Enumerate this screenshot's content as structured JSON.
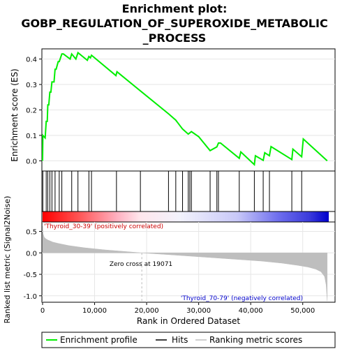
{
  "chart_data": [
    {
      "type": "line",
      "title_lines": [
        "Enrichment plot:",
        "GOBP_REGULATION_OF_SUPEROXIDE_METABOLIC",
        "_PROCESS"
      ],
      "ylabel": "Enrichment score (ES)",
      "xlim": [
        0,
        55000
      ],
      "ylim": [
        -0.04,
        0.44
      ],
      "yticks": [
        0.0,
        0.1,
        0.2,
        0.3,
        0.4
      ],
      "ytick_labels": [
        "0.0",
        "0.1",
        "0.2",
        "0.3",
        "0.4"
      ],
      "grid": true,
      "series": [
        {
          "name": "Enrichment profile",
          "color": "#00ee00",
          "x": [
            0,
            50,
            500,
            700,
            900,
            1000,
            1200,
            1400,
            1600,
            1800,
            2200,
            2400,
            2600,
            3000,
            3200,
            3700,
            4000,
            5300,
            5600,
            6400,
            6800,
            8600,
            8900,
            9200,
            9400,
            14100,
            14300,
            18800,
            24200,
            25600,
            26900,
            28000,
            28300,
            28600,
            30000,
            32200,
            33500,
            33800,
            34200,
            37800,
            38100,
            40700,
            40900,
            42400,
            42700,
            43600,
            43900,
            47900,
            48100,
            49800,
            50100,
            54700
          ],
          "y": [
            0.0,
            0.1,
            0.09,
            0.155,
            0.155,
            0.22,
            0.22,
            0.27,
            0.27,
            0.31,
            0.31,
            0.36,
            0.36,
            0.39,
            0.39,
            0.42,
            0.42,
            0.4,
            0.42,
            0.4,
            0.425,
            0.395,
            0.41,
            0.405,
            0.415,
            0.335,
            0.35,
            0.275,
            0.185,
            0.16,
            0.125,
            0.105,
            0.11,
            0.115,
            0.095,
            0.04,
            0.055,
            0.07,
            0.07,
            0.01,
            0.035,
            -0.015,
            0.02,
            0.002,
            0.032,
            0.02,
            0.056,
            0.005,
            0.046,
            0.016,
            0.086,
            0.0
          ]
        }
      ]
    },
    {
      "type": "hits",
      "name": "Hits",
      "xlim": [
        0,
        55000
      ],
      "hits": [
        50,
        700,
        1000,
        1400,
        1800,
        2400,
        3200,
        3700,
        5600,
        6800,
        8900,
        9400,
        14200,
        18800,
        24200,
        25600,
        26900,
        28000,
        28300,
        28600,
        32200,
        33500,
        33800,
        37800,
        40700,
        42400,
        43600,
        47900,
        49800
      ]
    },
    {
      "type": "heatmap",
      "xlim": [
        0,
        55000
      ],
      "gradient_stops": [
        {
          "offset": 0.0,
          "color": "#ff0000"
        },
        {
          "offset": 0.12,
          "color": "#ff5050"
        },
        {
          "offset": 0.26,
          "color": "#ffb0c0"
        },
        {
          "offset": 0.34,
          "color": "#ffe6ec"
        },
        {
          "offset": 0.48,
          "color": "#f2f2fc"
        },
        {
          "offset": 0.68,
          "color": "#c8c8f8"
        },
        {
          "offset": 0.82,
          "color": "#7070ee"
        },
        {
          "offset": 0.93,
          "color": "#3c3cdc"
        },
        {
          "offset": 1.0,
          "color": "#0000cc"
        }
      ]
    },
    {
      "type": "area",
      "ylabel": "Ranked list metric (Signal2Noise)",
      "xlabel": "Rank in Ordered Dataset",
      "xlim": [
        0,
        55000
      ],
      "ylim": [
        -1.15,
        0.72
      ],
      "yticks": [
        -1.0,
        -0.5,
        0.0,
        0.5
      ],
      "ytick_labels": [
        "-1.0",
        "-0.5",
        "0.0",
        "0.5"
      ],
      "xticks": [
        0,
        10000,
        20000,
        30000,
        40000,
        50000
      ],
      "xtick_labels": [
        "0",
        "10,000",
        "20,000",
        "30,000",
        "40,000",
        "50,000"
      ],
      "grid": true,
      "color": "#bebebe",
      "x": [
        0,
        100,
        300,
        600,
        1000,
        2000,
        3000,
        5000,
        8000,
        12000,
        16000,
        19071,
        24000,
        30000,
        36000,
        42000,
        46000,
        49000,
        51000,
        52500,
        53500,
        54200,
        54500,
        54700
      ],
      "y": [
        0.62,
        0.45,
        0.37,
        0.33,
        0.3,
        0.25,
        0.22,
        0.17,
        0.12,
        0.07,
        0.03,
        0.0,
        -0.04,
        -0.09,
        -0.14,
        -0.19,
        -0.24,
        -0.29,
        -0.33,
        -0.38,
        -0.44,
        -0.55,
        -0.75,
        -1.12
      ],
      "zero_cross_x": 19071,
      "zero_cross_label": "Zero cross at 19071",
      "pos_label": "'Thyroid_30-39' (positively correlated)",
      "neg_label": "'Thyroid_70-79' (negatively correlated)"
    }
  ],
  "legend": {
    "position": "bottom",
    "items": [
      {
        "label": "Enrichment profile",
        "color": "#00ee00"
      },
      {
        "label": "Hits",
        "color": "#000000"
      },
      {
        "label": "Ranking metric scores",
        "color": "#bebebe"
      }
    ]
  }
}
